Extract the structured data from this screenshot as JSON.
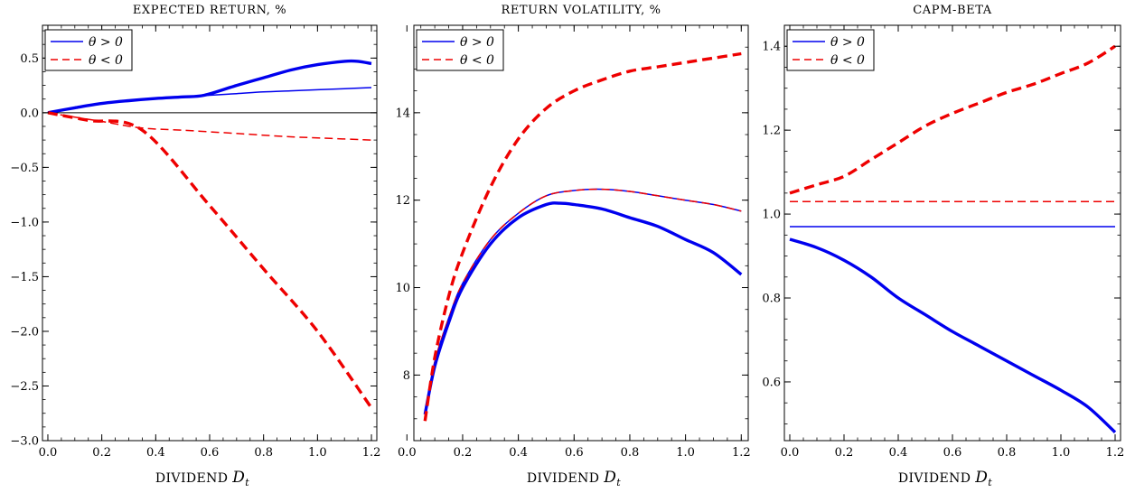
{
  "chart_data": [
    {
      "type": "line",
      "title": "EXPECTED RETURN, %",
      "xlabel_prefix": "DIVIDEND",
      "xlabel_var": "D",
      "xlabel_sub": "t",
      "ylabel": "",
      "xlim": [
        -0.02,
        1.22
      ],
      "ylim": [
        -3.0,
        0.8
      ],
      "xticks": [
        0.0,
        0.2,
        0.4,
        0.6,
        0.8,
        1.0,
        1.2
      ],
      "xtick_labels": [
        "0.0",
        "0.2",
        "0.4",
        "0.6",
        "0.8",
        "1.0",
        "1.2"
      ],
      "yticks": [
        0.5,
        0.0,
        -0.5,
        -1.0,
        -1.5,
        -2.0,
        -2.5,
        -3.0
      ],
      "ytick_labels": [
        "0.5",
        "0.0",
        "−0.5",
        "−1.0",
        "−1.5",
        "−2.0",
        "−2.5",
        "−3.0"
      ],
      "hline": 0.0,
      "legend": {
        "position": "top-left",
        "entries": [
          {
            "label": "θ > 0",
            "color": "#0000ee",
            "dash": "solid"
          },
          {
            "label": "θ < 0",
            "color": "#ee0000",
            "dash": "dashed"
          }
        ]
      },
      "series": [
        {
          "color": "#0000ee",
          "dash": "solid",
          "width": "thin",
          "x": [
            0.0,
            0.1,
            0.2,
            0.3,
            0.4,
            0.5,
            0.6,
            0.7,
            0.8,
            0.9,
            1.0,
            1.1,
            1.2
          ],
          "y": [
            0.0,
            0.045,
            0.085,
            0.11,
            0.13,
            0.145,
            0.16,
            0.175,
            0.19,
            0.2,
            0.21,
            0.22,
            0.23
          ]
        },
        {
          "color": "#ee0000",
          "dash": "dashed",
          "width": "thin",
          "x": [
            0.0,
            0.2,
            0.35,
            0.5,
            0.7,
            0.9,
            1.0,
            1.2
          ],
          "y": [
            0.0,
            -0.08,
            -0.14,
            -0.16,
            -0.19,
            -0.22,
            -0.23,
            -0.25
          ]
        },
        {
          "color": "#0000ee",
          "dash": "solid",
          "width": "thick",
          "x": [
            0.0,
            0.1,
            0.2,
            0.3,
            0.4,
            0.5,
            0.58,
            0.7,
            0.8,
            0.9,
            1.0,
            1.1,
            1.15,
            1.2
          ],
          "y": [
            0.0,
            0.045,
            0.085,
            0.11,
            0.13,
            0.145,
            0.16,
            0.25,
            0.32,
            0.39,
            0.44,
            0.47,
            0.47,
            0.45
          ]
        },
        {
          "color": "#ee0000",
          "dash": "dashed",
          "width": "thick",
          "x": [
            0.0,
            0.15,
            0.35,
            0.6,
            0.8,
            1.0,
            1.2
          ],
          "y": [
            0.0,
            -0.07,
            -0.16,
            -0.85,
            -1.43,
            -2.0,
            -2.7
          ]
        }
      ]
    },
    {
      "type": "line",
      "title": "RETURN VOLATILITY, %",
      "xlabel_prefix": "DIVIDEND",
      "xlabel_var": "D",
      "xlabel_sub": "t",
      "ylabel": "",
      "xlim": [
        0.025,
        1.225
      ],
      "ylim": [
        6.5,
        16.0
      ],
      "xticks": [
        0.0,
        0.2,
        0.4,
        0.6,
        0.8,
        1.0,
        1.2
      ],
      "xtick_labels": [
        "0.0",
        "0.2",
        "0.4",
        "0.6",
        "0.8",
        "1.0",
        "1.2"
      ],
      "yticks": [
        8,
        10,
        12,
        14
      ],
      "ytick_labels": [
        "8",
        "10",
        "12",
        "14"
      ],
      "legend": {
        "position": "top-left",
        "entries": [
          {
            "label": "θ > 0",
            "color": "#0000ee",
            "dash": "solid"
          },
          {
            "label": "θ < 0",
            "color": "#ee0000",
            "dash": "dashed"
          }
        ]
      },
      "series": [
        {
          "color": "#0000ee",
          "dash": "solid",
          "width": "thin",
          "x": [
            0.065,
            0.1,
            0.15,
            0.2,
            0.3,
            0.4,
            0.5,
            0.6,
            0.7,
            0.8,
            0.9,
            1.0,
            1.1,
            1.2
          ],
          "y": [
            7.1,
            8.3,
            9.3,
            10.1,
            11.1,
            11.7,
            12.1,
            12.22,
            12.25,
            12.2,
            12.1,
            12.0,
            11.9,
            11.75
          ]
        },
        {
          "color": "#ee0000",
          "dash": "dashed",
          "width": "thin",
          "x": [
            0.065,
            0.1,
            0.15,
            0.2,
            0.3,
            0.4,
            0.5,
            0.6,
            0.7,
            0.8,
            0.9,
            1.0,
            1.1,
            1.2
          ],
          "y": [
            7.1,
            8.3,
            9.3,
            10.1,
            11.1,
            11.7,
            12.1,
            12.22,
            12.25,
            12.2,
            12.1,
            12.0,
            11.9,
            11.75
          ]
        },
        {
          "color": "#0000ee",
          "dash": "solid",
          "width": "thick",
          "x": [
            0.065,
            0.1,
            0.15,
            0.2,
            0.3,
            0.4,
            0.5,
            0.55,
            0.6,
            0.7,
            0.8,
            0.9,
            1.0,
            1.1,
            1.2
          ],
          "y": [
            7.1,
            8.2,
            9.2,
            10.0,
            11.0,
            11.6,
            11.9,
            11.93,
            11.9,
            11.8,
            11.6,
            11.4,
            11.1,
            10.8,
            10.3
          ]
        },
        {
          "color": "#ee0000",
          "dash": "dashed",
          "width": "thick",
          "x": [
            0.065,
            0.1,
            0.15,
            0.2,
            0.3,
            0.4,
            0.5,
            0.6,
            0.7,
            0.8,
            0.9,
            1.0,
            1.1,
            1.2
          ],
          "y": [
            6.95,
            8.4,
            9.8,
            10.8,
            12.3,
            13.4,
            14.1,
            14.5,
            14.75,
            14.95,
            15.05,
            15.15,
            15.25,
            15.35
          ]
        }
      ]
    },
    {
      "type": "line",
      "title": "CAPM-BETA",
      "xlabel_prefix": "DIVIDEND",
      "xlabel_var": "D",
      "xlabel_sub": "t",
      "ylabel": "",
      "xlim": [
        -0.02,
        1.22
      ],
      "ylim": [
        0.46,
        1.45
      ],
      "xticks": [
        0.0,
        0.2,
        0.4,
        0.6,
        0.8,
        1.0,
        1.2
      ],
      "xtick_labels": [
        "0.0",
        "0.2",
        "0.4",
        "0.6",
        "0.8",
        "1.0",
        "1.2"
      ],
      "yticks": [
        0.6,
        0.8,
        1.0,
        1.2,
        1.4
      ],
      "ytick_labels": [
        "0.6",
        "0.8",
        "1.0",
        "1.2",
        "1.4"
      ],
      "legend": {
        "position": "top-left",
        "entries": [
          {
            "label": "θ > 0",
            "color": "#0000ee",
            "dash": "solid"
          },
          {
            "label": "θ < 0",
            "color": "#ee0000",
            "dash": "dashed"
          }
        ]
      },
      "series": [
        {
          "color": "#0000ee",
          "dash": "solid",
          "width": "thin",
          "x": [
            0.0,
            1.2
          ],
          "y": [
            0.97,
            0.97
          ]
        },
        {
          "color": "#ee0000",
          "dash": "dashed",
          "width": "thin",
          "x": [
            0.0,
            1.2
          ],
          "y": [
            1.03,
            1.03
          ]
        },
        {
          "color": "#0000ee",
          "dash": "solid",
          "width": "thick",
          "x": [
            0.0,
            0.1,
            0.2,
            0.3,
            0.4,
            0.5,
            0.6,
            0.7,
            0.8,
            0.9,
            1.0,
            1.1,
            1.2
          ],
          "y": [
            0.94,
            0.92,
            0.89,
            0.85,
            0.8,
            0.76,
            0.72,
            0.685,
            0.65,
            0.615,
            0.58,
            0.54,
            0.48
          ]
        },
        {
          "color": "#ee0000",
          "dash": "dashed",
          "width": "thick",
          "x": [
            0.0,
            0.1,
            0.2,
            0.3,
            0.4,
            0.5,
            0.6,
            0.7,
            0.8,
            0.9,
            1.0,
            1.1,
            1.2
          ],
          "y": [
            1.05,
            1.07,
            1.09,
            1.13,
            1.17,
            1.21,
            1.24,
            1.265,
            1.29,
            1.31,
            1.335,
            1.36,
            1.4
          ]
        }
      ]
    }
  ]
}
